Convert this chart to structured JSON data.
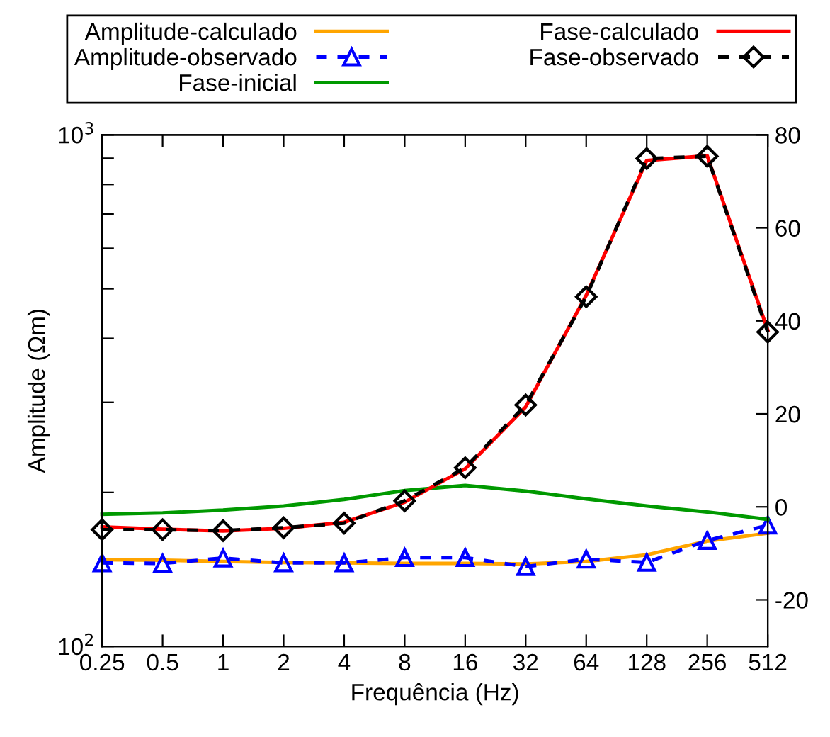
{
  "chart_data": {
    "type": "line",
    "xlabel": "Frequência (Hz)",
    "ylabel": "Amplitude (Ωm)",
    "x": [
      0.25,
      0.5,
      1,
      2,
      4,
      8,
      16,
      32,
      64,
      128,
      256,
      512
    ],
    "log": "xy",
    "xlim": [
      0.25,
      512
    ],
    "xticks": [
      {
        "value": 0.25,
        "label": "0.25"
      },
      {
        "value": 0.5,
        "label": "0.5"
      },
      1,
      2,
      4,
      8,
      16,
      32,
      64,
      128,
      256,
      512
    ],
    "ylim": [
      100,
      1000
    ],
    "yticks": [
      {
        "value": 100,
        "label": "10$^{2}$"
      },
      {
        "value": 200,
        "label": null
      },
      {
        "value": 300,
        "label": null
      },
      {
        "value": 400,
        "label": null
      },
      {
        "value": 500,
        "label": null
      },
      {
        "value": 600,
        "label": null
      },
      {
        "value": 700,
        "label": null
      },
      {
        "value": 800,
        "label": null
      },
      {
        "value": 900,
        "label": null
      },
      {
        "value": 1000,
        "label": "10$^{3}$"
      }
    ],
    "y2lim": [
      -30,
      80
    ],
    "y2ticks": [
      -20,
      0,
      20,
      40,
      60,
      80
    ],
    "legend": "top",
    "grid": false,
    "series": [
      {
        "name": "Amplitude-calculado",
        "color": "#ffa500",
        "marker": "none",
        "line_style": "solid",
        "values": [
          147.7,
          147.4,
          146.6,
          145.9,
          145.6,
          145.3,
          145.3,
          144.9,
          146.6,
          151,
          160.6,
          166.4
        ]
      },
      {
        "name": "Amplitude-observado",
        "color": "#0000ff",
        "marker": "triangle",
        "line_style": "dashed",
        "values": [
          145.6,
          145.3,
          148.8,
          145.6,
          145.6,
          149.1,
          149.1,
          143.2,
          148.1,
          145.9,
          161,
          172.5
        ]
      },
      {
        "name": "Fase-inicial",
        "color": "#009900",
        "marker": "none",
        "line_style": "solid",
        "axis": "y2",
        "values": [
          -1.6,
          -1.3,
          -0.7,
          0.2,
          1.6,
          3.5,
          4.6,
          3.4,
          1.7,
          0.2,
          -1.1,
          -2.7
        ]
      },
      {
        "name": "Fase-calculado",
        "color": "#ff0000",
        "marker": "none",
        "line_style": "solid",
        "axis": "y2",
        "values": [
          -4.3,
          -4.8,
          -5.2,
          -4.6,
          -3.3,
          1.0,
          8.2,
          21.5,
          45.5,
          74.5,
          75.5,
          38
        ]
      },
      {
        "name": "Fase-observado",
        "color": "#000000",
        "marker": "diamond",
        "line_style": "dashed",
        "axis": "y2",
        "values": [
          -4.9,
          -4.9,
          -5.1,
          -4.5,
          -3.5,
          1.3,
          8.4,
          21.9,
          45.2,
          74.9,
          75.4,
          37.6
        ]
      }
    ]
  }
}
